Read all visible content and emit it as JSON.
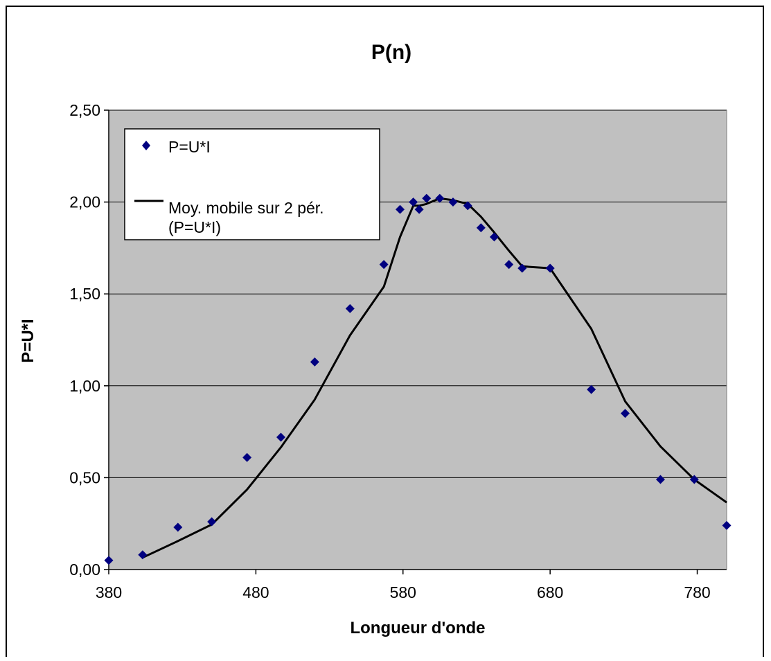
{
  "chart_data": {
    "type": "scatter",
    "title": "P(n)",
    "xlabel": "Longueur d'onde",
    "ylabel": "P=U*I",
    "xlim": [
      380,
      800
    ],
    "ylim": [
      0,
      2.5
    ],
    "x_ticks": [
      "380",
      "480",
      "580",
      "680",
      "780"
    ],
    "y_ticks": [
      "0,00",
      "0,50",
      "1,00",
      "1,50",
      "2,00",
      "2,50"
    ],
    "grid": "horizontal",
    "legend_position": "top-left",
    "plot_background": "#c0c0c0",
    "marker_color": "#000080",
    "line_color": "#000000",
    "series": [
      {
        "name": "P=U*I",
        "kind": "markers",
        "x": [
          380,
          403,
          427,
          450,
          474,
          497,
          520,
          544,
          567,
          578,
          587,
          591,
          596,
          605,
          614,
          624,
          633,
          642,
          652,
          661,
          680,
          708,
          731,
          755,
          778,
          800
        ],
        "y": [
          0.05,
          0.08,
          0.23,
          0.26,
          0.61,
          0.72,
          1.13,
          1.42,
          1.66,
          1.96,
          2.0,
          1.96,
          2.02,
          2.02,
          2.0,
          1.98,
          1.86,
          1.81,
          1.66,
          1.64,
          1.64,
          0.98,
          0.85,
          0.49,
          0.49,
          0.24
        ]
      },
      {
        "name": "Moy. mobile sur 2 pér. (P=U*I)",
        "kind": "line",
        "x": [
          403,
          427,
          450,
          474,
          497,
          520,
          544,
          567,
          578,
          587,
          591,
          596,
          605,
          614,
          624,
          633,
          642,
          652,
          661,
          680,
          708,
          731,
          755,
          778,
          800
        ],
        "y": [
          0.065,
          0.155,
          0.245,
          0.435,
          0.665,
          0.925,
          1.275,
          1.54,
          1.81,
          1.98,
          1.98,
          1.99,
          2.02,
          2.01,
          1.99,
          1.92,
          1.835,
          1.735,
          1.65,
          1.64,
          1.31,
          0.915,
          0.67,
          0.49,
          0.365
        ]
      }
    ]
  }
}
